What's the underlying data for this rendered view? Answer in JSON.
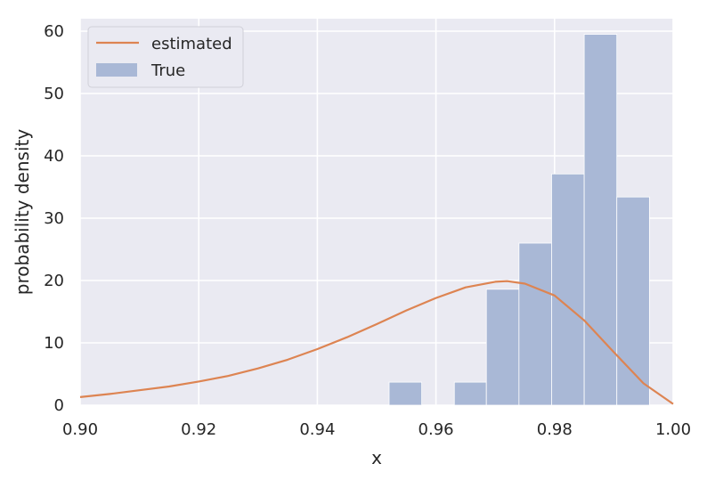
{
  "chart_data": {
    "type": "histogram+line",
    "xlabel": "x",
    "ylabel": "probability density",
    "xlim": [
      0.9,
      1.0
    ],
    "ylim": [
      0,
      62
    ],
    "x_ticks": [
      0.9,
      0.92,
      0.94,
      0.96,
      0.98,
      1.0
    ],
    "x_tick_labels": [
      "0.90",
      "0.92",
      "0.94",
      "0.96",
      "0.98",
      "1.00"
    ],
    "y_ticks": [
      0,
      10,
      20,
      30,
      40,
      50,
      60
    ],
    "y_tick_labels": [
      "0",
      "10",
      "20",
      "30",
      "40",
      "50",
      "60"
    ],
    "grid": true,
    "legend_position": "top-left",
    "histogram": {
      "name": "True",
      "color": "#a9b8d6",
      "bins": [
        {
          "x0": 0.9521,
          "x1": 0.9576,
          "value": 3.7
        },
        {
          "x0": 0.9631,
          "x1": 0.9685,
          "value": 3.7
        },
        {
          "x0": 0.9685,
          "x1": 0.974,
          "value": 18.6
        },
        {
          "x0": 0.974,
          "x1": 0.9795,
          "value": 26.0
        },
        {
          "x0": 0.9795,
          "x1": 0.985,
          "value": 37.1
        },
        {
          "x0": 0.985,
          "x1": 0.9905,
          "value": 59.5
        },
        {
          "x0": 0.9905,
          "x1": 0.996,
          "value": 33.4
        }
      ]
    },
    "line": {
      "name": "estimated",
      "color": "#dd8452",
      "x": [
        0.9,
        0.905,
        0.91,
        0.915,
        0.92,
        0.925,
        0.93,
        0.935,
        0.94,
        0.945,
        0.95,
        0.955,
        0.96,
        0.965,
        0.97,
        0.972,
        0.975,
        0.98,
        0.985,
        0.99,
        0.995,
        1.0
      ],
      "y": [
        1.3,
        1.8,
        2.4,
        3.0,
        3.8,
        4.7,
        5.9,
        7.3,
        9.0,
        10.9,
        13.0,
        15.2,
        17.2,
        18.9,
        19.8,
        19.9,
        19.5,
        17.6,
        13.6,
        8.5,
        3.5,
        0.2
      ]
    }
  }
}
